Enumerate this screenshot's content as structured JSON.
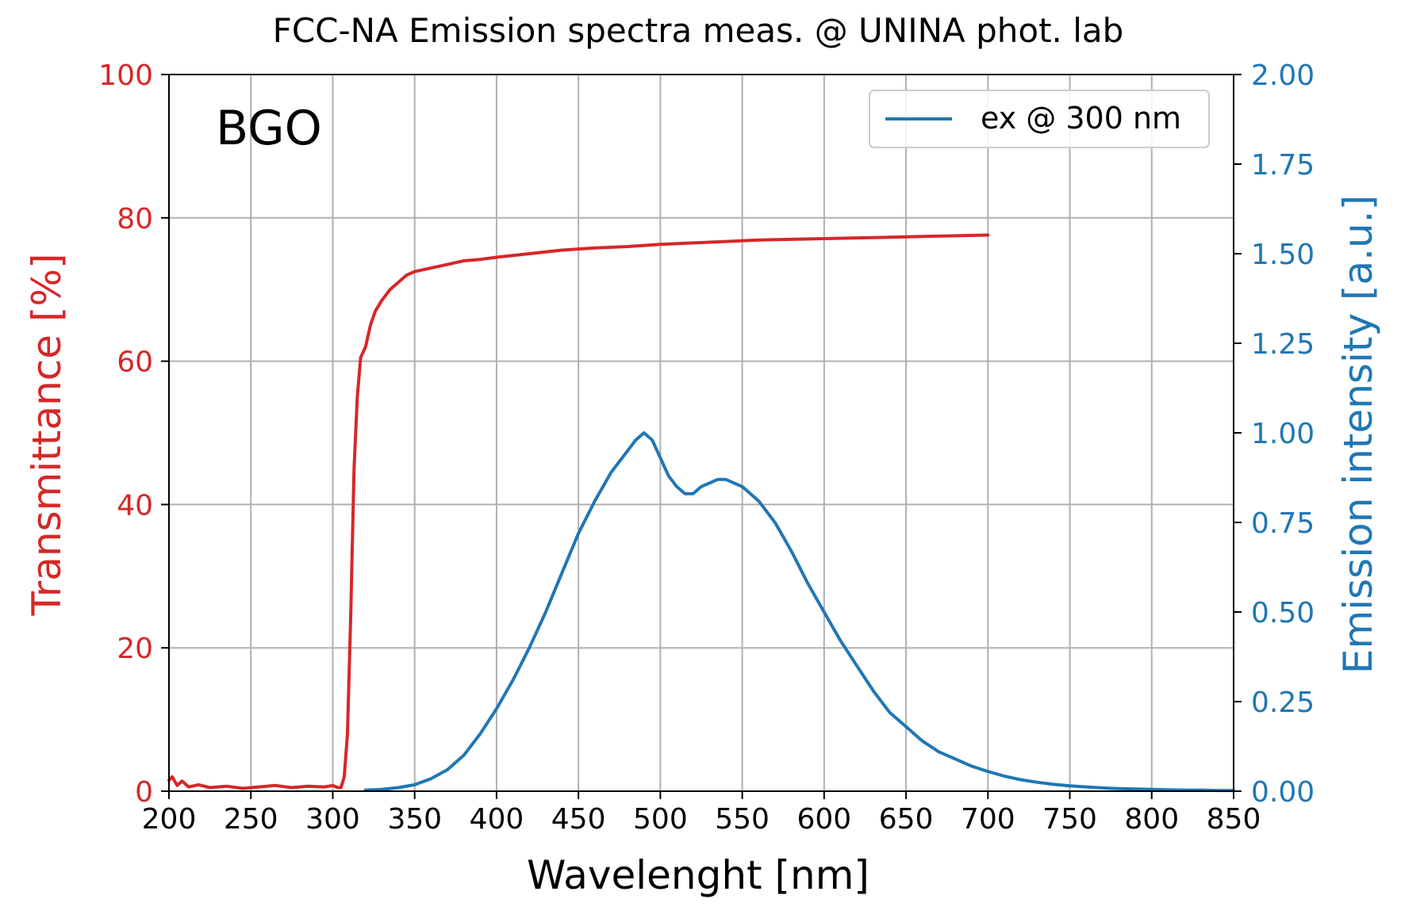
{
  "chart_data": {
    "type": "line",
    "title": "FCC-NA Emission spectra meas. @ UNINA phot. lab",
    "annotation": "BGO",
    "xlabel": "Wavelenght [nm]",
    "ylabel_left": "Transmittance [%]",
    "ylabel_right": "Emission intensity [a.u.]",
    "xlim": [
      200,
      850
    ],
    "ylim_left": [
      0,
      100
    ],
    "ylim_right": [
      0,
      2.0
    ],
    "x_ticks": [
      "200",
      "250",
      "300",
      "350",
      "400",
      "450",
      "500",
      "550",
      "600",
      "650",
      "700",
      "750",
      "800",
      "850"
    ],
    "y_left_ticks": [
      "0",
      "20",
      "40",
      "60",
      "80",
      "100"
    ],
    "y_right_ticks": [
      "0.00",
      "0.25",
      "0.50",
      "0.75",
      "1.00",
      "1.25",
      "1.50",
      "1.75",
      "2.00"
    ],
    "grid": true,
    "legend_position": "top-right",
    "colors": {
      "transmittance": "#d62728",
      "emission": "#1f77b4",
      "grid": "#b0b0b0",
      "axis": "#000000"
    },
    "series": [
      {
        "axis": "left",
        "color": "#d62728",
        "x": [
          200,
          202,
          205,
          208,
          212,
          218,
          225,
          235,
          245,
          255,
          265,
          275,
          285,
          295,
          300,
          303,
          305,
          307,
          309,
          311,
          313,
          315,
          317,
          320,
          323,
          326,
          330,
          335,
          340,
          345,
          350,
          360,
          370,
          380,
          390,
          400,
          420,
          440,
          460,
          480,
          500,
          520,
          540,
          560,
          580,
          600,
          620,
          640,
          660,
          680,
          700
        ],
        "y": [
          1.5,
          2.0,
          0.8,
          1.4,
          0.6,
          0.9,
          0.5,
          0.7,
          0.4,
          0.6,
          0.8,
          0.5,
          0.7,
          0.6,
          0.8,
          0.5,
          0.5,
          2.0,
          8.0,
          25.0,
          45.0,
          55.0,
          60.5,
          62.0,
          65.0,
          67.0,
          68.5,
          70.0,
          71.0,
          72.0,
          72.5,
          73.0,
          73.5,
          74.0,
          74.2,
          74.5,
          75.0,
          75.5,
          75.8,
          76.0,
          76.3,
          76.5,
          76.7,
          76.9,
          77.0,
          77.1,
          77.2,
          77.3,
          77.4,
          77.5,
          77.6
        ]
      },
      {
        "name": "ex @ 300 nm",
        "axis": "right",
        "color": "#1f77b4",
        "x": [
          320,
          330,
          340,
          350,
          360,
          370,
          380,
          390,
          400,
          410,
          420,
          430,
          440,
          450,
          460,
          470,
          480,
          485,
          490,
          495,
          500,
          505,
          510,
          515,
          520,
          525,
          530,
          535,
          540,
          545,
          550,
          560,
          570,
          580,
          590,
          600,
          610,
          620,
          630,
          640,
          650,
          660,
          670,
          680,
          690,
          700,
          710,
          720,
          730,
          740,
          750,
          760,
          770,
          780,
          790,
          800,
          810,
          820,
          830,
          840,
          850
        ],
        "y": [
          0.003,
          0.005,
          0.01,
          0.018,
          0.035,
          0.06,
          0.1,
          0.16,
          0.23,
          0.31,
          0.4,
          0.5,
          0.61,
          0.72,
          0.81,
          0.89,
          0.95,
          0.98,
          1.0,
          0.98,
          0.93,
          0.88,
          0.85,
          0.83,
          0.83,
          0.85,
          0.86,
          0.87,
          0.87,
          0.86,
          0.85,
          0.81,
          0.75,
          0.67,
          0.58,
          0.5,
          0.42,
          0.35,
          0.28,
          0.22,
          0.18,
          0.14,
          0.11,
          0.09,
          0.07,
          0.055,
          0.042,
          0.032,
          0.025,
          0.019,
          0.015,
          0.012,
          0.009,
          0.007,
          0.006,
          0.005,
          0.004,
          0.003,
          0.003,
          0.002,
          0.002
        ]
      }
    ]
  }
}
